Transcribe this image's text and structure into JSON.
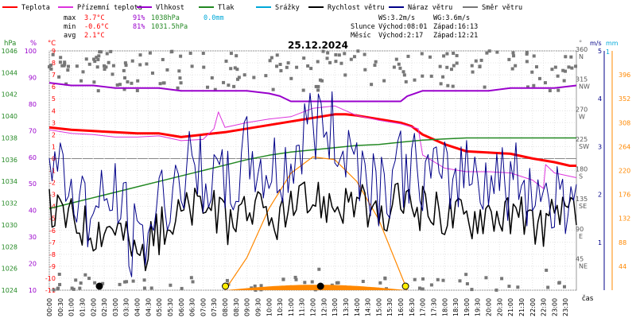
{
  "legend": [
    {
      "label": "Teplota",
      "color": "#ff0000"
    },
    {
      "label": "Přízemní teplota",
      "color": "#dd33dd"
    },
    {
      "label": "Vlhkost",
      "color": "#9900cc"
    },
    {
      "label": "Tlak",
      "color": "#228822"
    },
    {
      "label": "Srážky",
      "color": "#00a8d8"
    },
    {
      "label": "Rychlost větru",
      "color": "#000000"
    },
    {
      "label": "Náraz větru",
      "color": "#000088"
    },
    {
      "label": "Směr větru",
      "color": "#777777"
    }
  ],
  "stats": {
    "max_label": "max",
    "min_label": "min",
    "avg_label": "avg",
    "max_temp": "3.7°C",
    "max_hum": "91%",
    "max_press": "1038hPa",
    "rain": "0.0mm",
    "min_temp": "-0.6°C",
    "min_hum": "81%",
    "min_press": "1031.5hPa",
    "avg_temp": "2.1°C"
  },
  "info": {
    "ws": "WS:3.2m/s",
    "wg": "WG:3.6m/s",
    "sun_label": "Slunce",
    "sun_rise": "Východ:08:01",
    "sun_set": "Západ:16:13",
    "moon_label": "Měsíc",
    "moon_rise": "Východ:2:17",
    "moon_set": "Západ:12:21"
  },
  "title": "25.12.2024",
  "axis_units": {
    "hpa": "hPa",
    "percent": "%",
    "celsius": "°C",
    "deg": "°",
    "ms": "m/s",
    "mm": "mm",
    "cas": "čas"
  },
  "chart_data": {
    "type": "line",
    "title": "25.12.2024",
    "x_ticks": [
      "00:00",
      "00:30",
      "01:00",
      "01:30",
      "02:00",
      "02:30",
      "03:00",
      "03:30",
      "04:00",
      "04:30",
      "05:00",
      "05:30",
      "06:00",
      "06:30",
      "07:00",
      "07:30",
      "08:00",
      "08:30",
      "09:00",
      "09:30",
      "10:00",
      "10:30",
      "11:00",
      "11:30",
      "12:00",
      "12:30",
      "13:00",
      "13:30",
      "14:00",
      "14:30",
      "15:00",
      "15:30",
      "16:00",
      "16:30",
      "17:00",
      "17:30",
      "18:00",
      "18:30",
      "19:00",
      "19:30",
      "20:00",
      "20:30",
      "21:00",
      "21:30",
      "22:00",
      "22:30",
      "23:00",
      "23:30"
    ],
    "xlabel": "čas",
    "axes": {
      "temperature": {
        "unit": "°C",
        "range": [
          -11,
          9
        ],
        "ticks": [
          9,
          8,
          7,
          6,
          5,
          4,
          3,
          2,
          1,
          0,
          -1,
          -2,
          -3,
          -4,
          -5,
          -6,
          -7,
          -8,
          -9,
          -10,
          -11
        ]
      },
      "humidity": {
        "unit": "%",
        "range": [
          10,
          100
        ],
        "ticks": [
          100,
          90,
          80,
          70,
          60,
          50,
          40,
          30,
          20,
          10
        ]
      },
      "pressure": {
        "unit": "hPa",
        "range": [
          1024,
          1046
        ],
        "ticks": [
          1046,
          1044,
          1042,
          1040,
          1038,
          1036,
          1034,
          1032,
          1030,
          1028,
          1026,
          1024
        ]
      },
      "direction": {
        "unit": "°",
        "range": [
          0,
          360
        ],
        "ticks": [
          {
            "v": 360,
            "l": "360",
            "c": "N"
          },
          {
            "v": 315,
            "l": "315",
            "c": "NW"
          },
          {
            "v": 270,
            "l": "270",
            "c": "W"
          },
          {
            "v": 225,
            "l": "225",
            "c": "SW"
          },
          {
            "v": 180,
            "l": "180",
            "c": "S"
          },
          {
            "v": 135,
            "l": "135",
            "c": "SE"
          },
          {
            "v": 90,
            "l": "90",
            "c": "E"
          },
          {
            "v": 45,
            "l": "45",
            "c": "NE"
          }
        ]
      },
      "wind": {
        "unit": "m/s",
        "range": [
          0,
          5
        ],
        "ticks": [
          5,
          4,
          3,
          2,
          1
        ]
      },
      "rain": {
        "unit": "mm",
        "range": [
          0,
          1
        ],
        "ticks": [
          1
        ]
      },
      "solar": {
        "range": [
          0,
          440
        ],
        "ticks": [
          396,
          352,
          308,
          264,
          220,
          176,
          132,
          88,
          44
        ]
      }
    },
    "series": [
      {
        "name": "Teplota",
        "axis": "temperature",
        "x_hours": [
          0,
          1,
          2,
          3,
          4,
          5,
          6,
          7,
          8,
          9,
          10,
          11,
          12,
          13,
          13.5,
          14,
          15,
          16,
          16.5,
          17,
          18,
          19,
          20,
          21,
          22,
          23,
          23.7,
          24
        ],
        "values": [
          2.6,
          2.4,
          2.3,
          2.2,
          2.1,
          2.1,
          1.8,
          2.0,
          2.2,
          2.5,
          2.8,
          3.1,
          3.4,
          3.7,
          3.7,
          3.6,
          3.3,
          3.0,
          2.7,
          2.0,
          1.2,
          0.6,
          0.5,
          0.4,
          0.0,
          -0.3,
          -0.6,
          -0.6
        ]
      },
      {
        "name": "Přízemní teplota",
        "axis": "temperature",
        "x_hours": [
          0,
          1,
          2,
          3,
          4,
          5,
          6,
          7,
          7.5,
          7.7,
          8,
          9,
          10,
          11,
          12,
          13,
          14,
          15,
          16,
          16.8,
          17,
          18,
          19,
          20,
          21,
          22,
          22.5,
          22.6,
          23,
          24
        ],
        "values": [
          2.4,
          2.1,
          2.0,
          1.8,
          1.8,
          1.9,
          1.5,
          1.6,
          2.5,
          3.9,
          2.6,
          3.0,
          3.3,
          3.5,
          4.2,
          4.4,
          3.6,
          3.2,
          2.9,
          2.5,
          0.3,
          -0.8,
          -1.1,
          -1.1,
          -1.2,
          -1.8,
          -2.5,
          -0.5,
          -1.2,
          -1.6
        ]
      },
      {
        "name": "Vlhkost",
        "axis": "humidity",
        "x_hours": [
          0,
          1,
          2,
          3,
          4,
          5,
          6,
          7,
          8,
          9,
          10,
          10.5,
          11,
          12,
          13,
          14,
          15,
          16,
          16.3,
          17,
          18,
          19,
          20,
          21,
          22,
          23,
          24
        ],
        "values": [
          88,
          87,
          87,
          86,
          86,
          86,
          85,
          85,
          85,
          85,
          84,
          83,
          81,
          81,
          81,
          81,
          81,
          81,
          83,
          85,
          85,
          85,
          85,
          86,
          86,
          86,
          87
        ]
      },
      {
        "name": "Tlak",
        "axis": "pressure",
        "x_hours": [
          0,
          1,
          2,
          3,
          4,
          5,
          6,
          7,
          8,
          9,
          10,
          11,
          12,
          13,
          14,
          15,
          16,
          17,
          18,
          19,
          20,
          21,
          22,
          23,
          24
        ],
        "values": [
          1031.5,
          1032,
          1032.5,
          1033,
          1033.5,
          1034,
          1034.5,
          1035,
          1035.5,
          1036,
          1036.4,
          1036.7,
          1036.9,
          1037.1,
          1037.3,
          1037.4,
          1037.6,
          1037.8,
          1037.9,
          1038,
          1038,
          1038,
          1038,
          1038,
          1038
        ]
      },
      {
        "name": "Rychlost větru",
        "axis": "wind",
        "x_hours": [
          0,
          1,
          2,
          3,
          4,
          5,
          6,
          7,
          8,
          9,
          10,
          11,
          12,
          13,
          14,
          15,
          16,
          17,
          18,
          19,
          20,
          21,
          22,
          23,
          24
        ],
        "values": [
          1.7,
          1.5,
          1.3,
          1.4,
          0.7,
          1.2,
          1.6,
          1.8,
          1.4,
          1.8,
          1.4,
          1.6,
          1.9,
          1.8,
          1.9,
          1.3,
          1.9,
          1.7,
          1.6,
          1.5,
          1.7,
          1.5,
          1.4,
          1.4,
          1.6
        ]
      },
      {
        "name": "Náraz větru",
        "axis": "wind",
        "x_hours": [
          0,
          1,
          2,
          3,
          4,
          5,
          6,
          7,
          8,
          9,
          10,
          11,
          12,
          13,
          14,
          15,
          16,
          17,
          18,
          19,
          20,
          21,
          22,
          23,
          24
        ],
        "values": [
          2.6,
          2.2,
          1.5,
          2.0,
          0.8,
          1.8,
          2.4,
          2.5,
          2.0,
          2.8,
          2.4,
          2.6,
          3.6,
          3.2,
          2.8,
          2.2,
          2.6,
          2.4,
          2.2,
          2.6,
          2.4,
          2.3,
          2.2,
          1.9,
          2.2
        ]
      },
      {
        "name": "Solar",
        "axis": "solar",
        "x_hours": [
          8,
          9,
          10,
          11,
          12,
          13,
          14,
          15,
          16,
          16.3
        ],
        "values": [
          0,
          60,
          150,
          215,
          245,
          240,
          200,
          130,
          30,
          0
        ]
      }
    ]
  }
}
